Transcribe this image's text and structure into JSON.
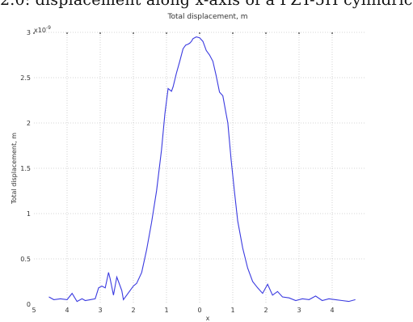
{
  "caption_fragment": "2.0: displacement along x-axis of a PZT-5H cylindric",
  "chart_data": {
    "type": "line",
    "title": "Total displacement, m",
    "xlabel": "x",
    "ylabel": "Total displacement, m",
    "y_multiplier": "x10",
    "y_multiplier_exp": "-9",
    "xlim": [
      -5,
      5
    ],
    "ylim": [
      0,
      3
    ],
    "grid": true,
    "line_color": "#3a3ae0",
    "x_ticks": [
      -5,
      -4,
      -3,
      -2,
      -1,
      0,
      1,
      2,
      3,
      4
    ],
    "x_tick_labels": [
      "5",
      "4",
      "3",
      "2",
      "1",
      "0",
      "1",
      "2",
      "3",
      "4"
    ],
    "y_ticks": [
      0,
      0.5,
      1,
      1.5,
      2,
      2.5,
      3
    ],
    "y_tick_labels": [
      "0",
      "0.5",
      "1",
      "1.5",
      "2",
      "2.5",
      "3"
    ],
    "series": [
      {
        "x": [
          -4.55,
          -4.4,
          -4.2,
          -4.0,
          -3.85,
          -3.7,
          -3.55,
          -3.45,
          -3.3,
          -3.15,
          -3.05,
          -2.95,
          -2.85,
          -2.75,
          -2.7,
          -2.6,
          -2.5,
          -2.45,
          -2.35,
          -2.3,
          -2.2,
          -2.1,
          -2.0,
          -1.9,
          -1.75,
          -1.6,
          -1.45,
          -1.3,
          -1.15,
          -1.05,
          -0.95,
          -0.85,
          -0.8,
          -0.7,
          -0.6,
          -0.5,
          -0.42,
          -0.35,
          -0.3,
          -0.25,
          -0.2,
          -0.1,
          0.0,
          0.1,
          0.2,
          0.3,
          0.4,
          0.5,
          0.6,
          0.7,
          0.8,
          0.85,
          0.95,
          1.05,
          1.15,
          1.3,
          1.45,
          1.6,
          1.75,
          1.9,
          2.05,
          2.2,
          2.35,
          2.5,
          2.7,
          2.9,
          3.1,
          3.3,
          3.5,
          3.7,
          3.9,
          4.1,
          4.3,
          4.5,
          4.7
        ],
        "y": [
          0.08,
          0.05,
          0.06,
          0.05,
          0.12,
          0.03,
          0.06,
          0.04,
          0.05,
          0.06,
          0.18,
          0.2,
          0.18,
          0.35,
          0.28,
          0.1,
          0.3,
          0.25,
          0.15,
          0.05,
          0.1,
          0.15,
          0.2,
          0.23,
          0.35,
          0.6,
          0.9,
          1.25,
          1.7,
          2.1,
          2.38,
          2.35,
          2.4,
          2.55,
          2.68,
          2.82,
          2.86,
          2.87,
          2.88,
          2.9,
          2.93,
          2.95,
          2.94,
          2.9,
          2.8,
          2.75,
          2.68,
          2.52,
          2.34,
          2.3,
          2.1,
          2.0,
          1.6,
          1.25,
          0.92,
          0.62,
          0.4,
          0.25,
          0.18,
          0.12,
          0.22,
          0.1,
          0.14,
          0.08,
          0.07,
          0.04,
          0.06,
          0.05,
          0.09,
          0.04,
          0.06,
          0.05,
          0.04,
          0.03,
          0.05
        ]
      }
    ]
  }
}
